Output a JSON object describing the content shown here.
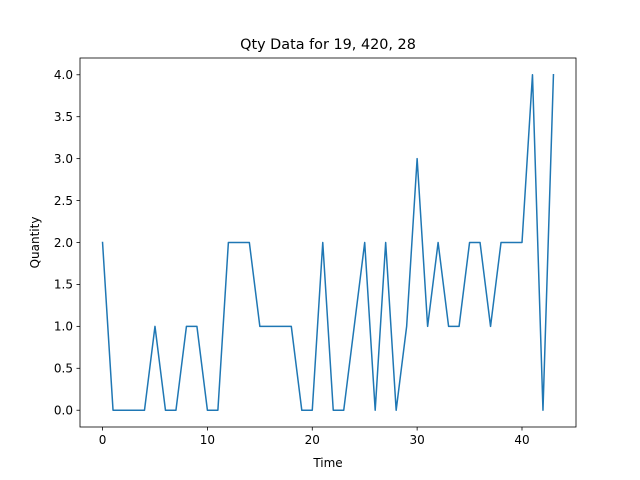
{
  "chart_data": {
    "type": "line",
    "title": "Qty Data for 19, 420, 28",
    "xlabel": "Time",
    "ylabel": "Quantity",
    "xlim": [
      -2.15,
      45.15
    ],
    "ylim": [
      -0.2,
      4.2
    ],
    "xticks": [
      0,
      10,
      20,
      30,
      40
    ],
    "yticks": [
      0.0,
      0.5,
      1.0,
      1.5,
      2.0,
      2.5,
      3.0,
      3.5,
      4.0
    ],
    "xtick_labels": [
      "0",
      "10",
      "20",
      "30",
      "40"
    ],
    "ytick_labels": [
      "0.0",
      "0.5",
      "1.0",
      "1.5",
      "2.0",
      "2.5",
      "3.0",
      "3.5",
      "4.0"
    ],
    "grid": false,
    "legend": "none",
    "series": [
      {
        "color": "#1f77b4",
        "x": [
          0,
          1,
          2,
          3,
          4,
          5,
          6,
          7,
          8,
          9,
          10,
          11,
          12,
          13,
          14,
          15,
          16,
          17,
          18,
          19,
          20,
          21,
          22,
          23,
          24,
          25,
          26,
          27,
          28,
          29,
          30,
          31,
          32,
          33,
          34,
          35,
          36,
          37,
          38,
          39,
          40,
          41,
          42,
          43
        ],
        "y": [
          2,
          0,
          0,
          0,
          0,
          1,
          0,
          0,
          1,
          1,
          0,
          0,
          2,
          2,
          2,
          1,
          1,
          1,
          1,
          0,
          0,
          2,
          0,
          0,
          1,
          2,
          0,
          2,
          0,
          1,
          3,
          1,
          2,
          1,
          1,
          2,
          2,
          1,
          2,
          2,
          2,
          4,
          0,
          4
        ]
      }
    ]
  }
}
